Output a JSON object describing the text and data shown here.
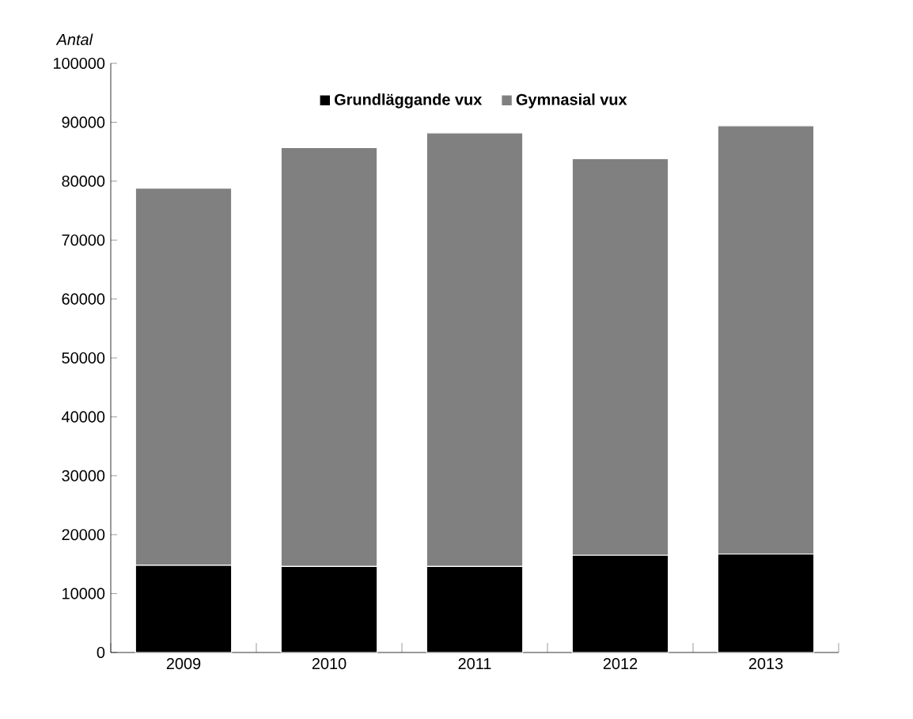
{
  "chart_data": {
    "type": "bar",
    "stacked": true,
    "ylabel": "Antal",
    "categories": [
      "2009",
      "2010",
      "2011",
      "2012",
      "2013"
    ],
    "series": [
      {
        "name": "Grundläggande vux",
        "color": "#000000",
        "values": [
          14800,
          14600,
          14600,
          16500,
          16700
        ]
      },
      {
        "name": "Gymnasial vux",
        "color": "#808080",
        "values": [
          64000,
          71100,
          73600,
          67300,
          72700
        ]
      }
    ],
    "ylim": [
      0,
      100000
    ],
    "yticks": [
      0,
      10000,
      20000,
      30000,
      40000,
      50000,
      60000,
      70000,
      80000,
      90000,
      100000
    ],
    "legend": "top",
    "grid": false
  }
}
